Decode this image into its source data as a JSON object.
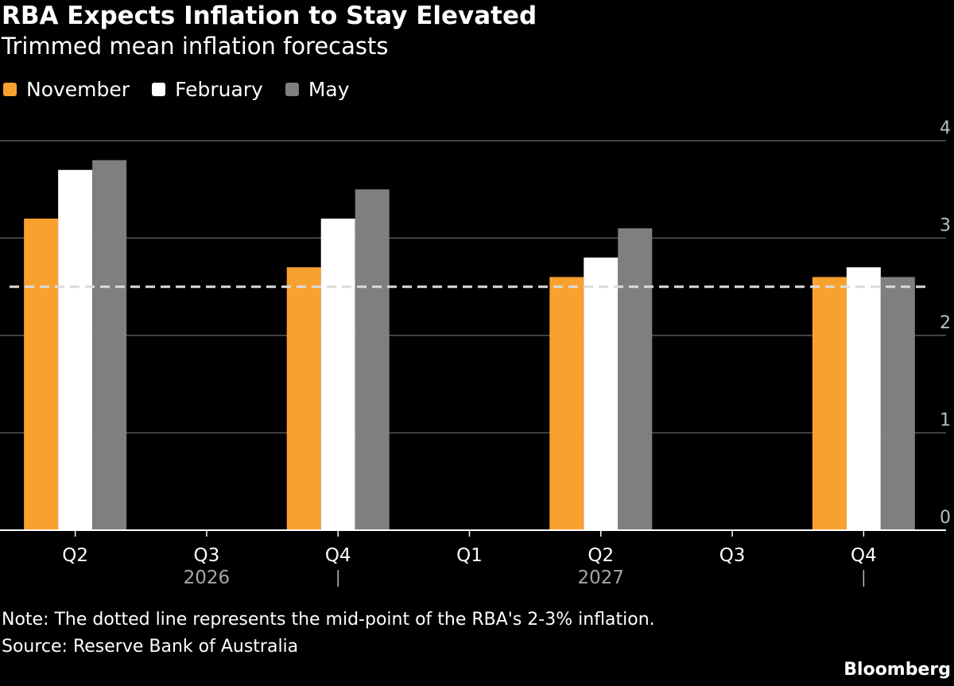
{
  "chart_data": {
    "type": "bar",
    "title": "RBA Expects Inflation to Stay Elevated",
    "subtitle": "Trimmed mean inflation forecasts",
    "categories": [
      "Q2",
      "Q3",
      "Q4",
      "Q1",
      "Q2",
      "Q3",
      "Q4"
    ],
    "year_labels": [
      {
        "label": "2026",
        "index": 1
      },
      {
        "label": "2027",
        "index": 4
      }
    ],
    "year_break_indices": [
      2,
      6
    ],
    "series": [
      {
        "name": "November",
        "color": "#f9a12e",
        "values": [
          3.2,
          null,
          2.7,
          null,
          2.6,
          null,
          2.6
        ]
      },
      {
        "name": "February",
        "color": "#ffffff",
        "values": [
          3.7,
          null,
          3.2,
          null,
          2.8,
          null,
          2.7
        ]
      },
      {
        "name": "May",
        "color": "#7f7f7f",
        "values": [
          3.8,
          null,
          3.5,
          null,
          3.1,
          null,
          2.6
        ]
      }
    ],
    "reference_line": {
      "value": 2.5,
      "style": "dashed",
      "color": "#dcdcdc"
    },
    "y_ticks": [
      0,
      1,
      2,
      3,
      4
    ],
    "ylim": [
      0,
      4
    ],
    "y_axis_side": "right",
    "grid": true,
    "legend_position": "top-left"
  },
  "note": "Note: The dotted line represents the mid-point of the RBA's 2-3% inflation.",
  "source": "Source: Reserve Bank of Australia",
  "brand": "Bloomberg"
}
